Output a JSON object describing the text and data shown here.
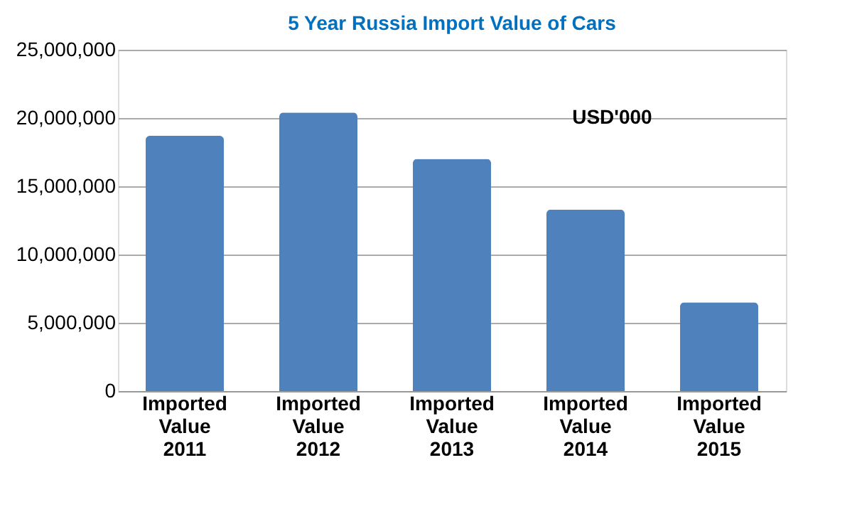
{
  "chart_data": {
    "type": "bar",
    "title": "5 Year Russia Import Value of Cars",
    "categories": [
      "Imported Value 2011",
      "Imported Value 2012",
      "Imported Value 2013",
      "Imported Value 2014",
      "Imported Value 2015"
    ],
    "values": [
      18700000,
      20400000,
      17000000,
      13300000,
      6500000
    ],
    "color": "#4f81bd",
    "ylim": [
      0,
      25000000
    ],
    "yticks": [
      0,
      {
        "value": 5000000,
        "label": "5,000,000"
      },
      {
        "value": 10000000,
        "label": "10,000,000"
      },
      {
        "value": 15000000,
        "label": "15,000,000"
      },
      {
        "value": 20000000,
        "label": "20,000,000"
      },
      {
        "value": 25000000,
        "label": "25,000,000"
      }
    ],
    "grid": "y",
    "annotations": [
      "USD'000"
    ]
  }
}
